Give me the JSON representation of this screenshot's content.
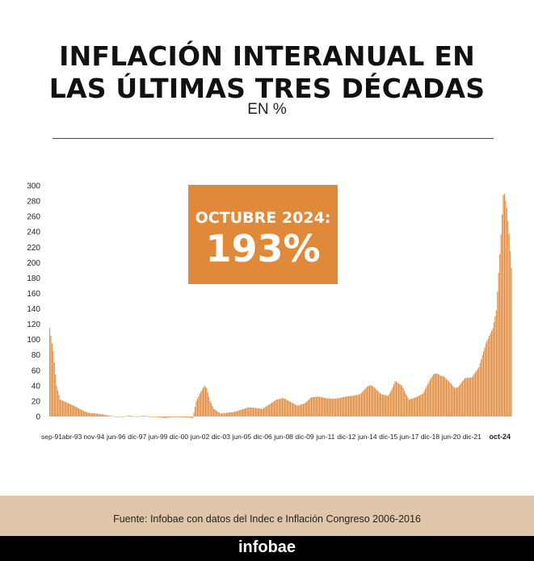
{
  "header": {
    "title_line1": "INFLACIÓN INTERANUAL EN",
    "title_line2": "LAS ÚLTIMAS TRES DÉCADAS",
    "subtitle": "EN %"
  },
  "callout": {
    "label": "OCTUBRE 2024:",
    "value": "193%"
  },
  "source": "Fuente: Infobae con datos del Indec e Inflación Congreso 2006-2016",
  "brand": "infobae",
  "colors": {
    "bar": "#e0893a",
    "callout": "#e0893a",
    "source_band": "#e1c7a9",
    "footer": "#000000"
  },
  "chart_data": {
    "type": "bar",
    "ylim": [
      0,
      300
    ],
    "yticks": [
      0,
      20,
      40,
      60,
      80,
      100,
      120,
      140,
      160,
      180,
      200,
      220,
      240,
      260,
      280,
      300
    ],
    "grid": false,
    "x_tick_labels": [
      "sep-91",
      "abr-93",
      "nov-94",
      "jun-96",
      "dic-97",
      "jun-99",
      "dic-00",
      "jun-02",
      "dic-03",
      "jun-05",
      "dic-06",
      "jun-08",
      "dic-09",
      "jun-11",
      "dic-12",
      "jun-14",
      "dic-15",
      "jun-17",
      "dic-18",
      "jun-20",
      "dic-21",
      "oct-24"
    ],
    "highlight_tick": "oct-24",
    "x_start": "sep-91",
    "x_end": "oct-24",
    "series": [
      {
        "keypoints": [
          [
            "sep-91",
            115
          ],
          [
            "dic-91",
            85
          ],
          [
            "mar-92",
            40
          ],
          [
            "jun-92",
            22
          ],
          [
            "dic-92",
            18
          ],
          [
            "jun-93",
            14
          ],
          [
            "dic-93",
            9
          ],
          [
            "jun-94",
            5
          ],
          [
            "dic-94",
            4
          ],
          [
            "jun-95",
            3
          ],
          [
            "dic-95",
            1
          ],
          [
            "jun-96",
            0
          ],
          [
            "dic-96",
            0
          ],
          [
            "jun-97",
            1
          ],
          [
            "dic-97",
            0
          ],
          [
            "jun-98",
            1
          ],
          [
            "dic-98",
            0
          ],
          [
            "jun-99",
            -1
          ],
          [
            "dic-99",
            -2
          ],
          [
            "jun-00",
            -1
          ],
          [
            "dic-00",
            -1
          ],
          [
            "jun-01",
            -1
          ],
          [
            "dic-01",
            -2
          ],
          [
            "mar-02",
            20
          ],
          [
            "jun-02",
            30
          ],
          [
            "oct-02",
            40
          ],
          [
            "dic-02",
            37
          ],
          [
            "mar-03",
            20
          ],
          [
            "jun-03",
            10
          ],
          [
            "dic-03",
            4
          ],
          [
            "jun-04",
            5
          ],
          [
            "dic-04",
            6
          ],
          [
            "jun-05",
            9
          ],
          [
            "dic-05",
            12
          ],
          [
            "jun-06",
            11
          ],
          [
            "dic-06",
            10
          ],
          [
            "jun-07",
            16
          ],
          [
            "dic-07",
            22
          ],
          [
            "jun-08",
            24
          ],
          [
            "dic-08",
            19
          ],
          [
            "jun-09",
            14
          ],
          [
            "dic-09",
            17
          ],
          [
            "jun-10",
            25
          ],
          [
            "dic-10",
            26
          ],
          [
            "jun-11",
            24
          ],
          [
            "dic-11",
            23
          ],
          [
            "jun-12",
            24
          ],
          [
            "dic-12",
            26
          ],
          [
            "jun-13",
            27
          ],
          [
            "dic-13",
            29
          ],
          [
            "jun-14",
            39
          ],
          [
            "sep-14",
            41
          ],
          [
            "dic-14",
            38
          ],
          [
            "jun-15",
            29
          ],
          [
            "dic-15",
            27
          ],
          [
            "mar-16",
            35
          ],
          [
            "jun-16",
            46
          ],
          [
            "dic-16",
            40
          ],
          [
            "mar-17",
            30
          ],
          [
            "jun-17",
            22
          ],
          [
            "dic-17",
            25
          ],
          [
            "jun-18",
            30
          ],
          [
            "dic-18",
            48
          ],
          [
            "mar-19",
            55
          ],
          [
            "jun-19",
            56
          ],
          [
            "sep-19",
            53
          ],
          [
            "dic-19",
            52
          ],
          [
            "jun-20",
            43
          ],
          [
            "sep-20",
            37
          ],
          [
            "dic-20",
            38
          ],
          [
            "jun-21",
            50
          ],
          [
            "dic-21",
            51
          ],
          [
            "jun-22",
            64
          ],
          [
            "dic-22",
            95
          ],
          [
            "jun-23",
            115
          ],
          [
            "sep-23",
            138
          ],
          [
            "dic-23",
            211
          ],
          [
            "mar-24",
            288
          ],
          [
            "abr-24",
            289
          ],
          [
            "jun-24",
            271
          ],
          [
            "ago-24",
            237
          ],
          [
            "oct-24",
            193
          ]
        ]
      }
    ]
  }
}
